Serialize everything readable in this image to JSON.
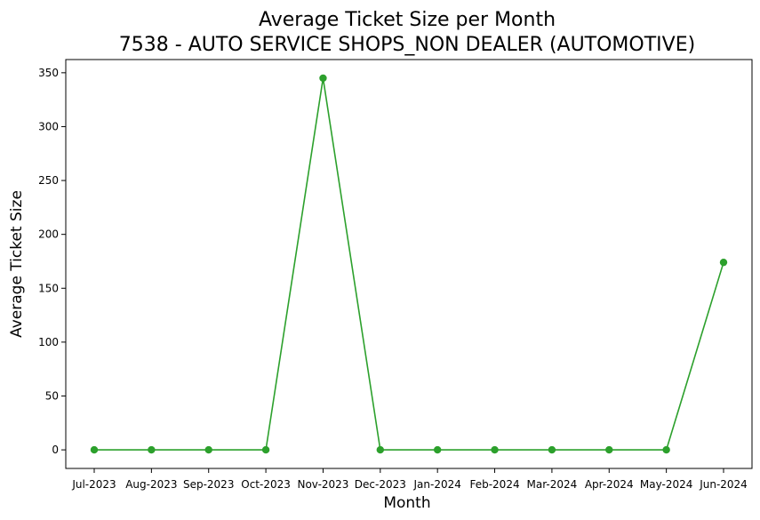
{
  "chart_data": {
    "type": "line",
    "title": "Average Ticket Size per Month",
    "subtitle": "7538 - AUTO SERVICE SHOPS_NON DEALER (AUTOMOTIVE)",
    "xlabel": "Month",
    "ylabel": "Average Ticket Size",
    "categories": [
      "Jul-2023",
      "Aug-2023",
      "Sep-2023",
      "Oct-2023",
      "Nov-2023",
      "Dec-2023",
      "Jan-2024",
      "Feb-2024",
      "Mar-2024",
      "Apr-2024",
      "May-2024",
      "Jun-2024"
    ],
    "series": [
      {
        "values": [
          0,
          0,
          0,
          0,
          345,
          0,
          0,
          0,
          0,
          0,
          0,
          174
        ],
        "color": "#2ca02c"
      }
    ],
    "ylim": [
      -17.25,
      362.25
    ],
    "yticks": [
      0,
      50,
      100,
      150,
      200,
      250,
      300,
      350
    ],
    "grid": false,
    "legend": false
  }
}
